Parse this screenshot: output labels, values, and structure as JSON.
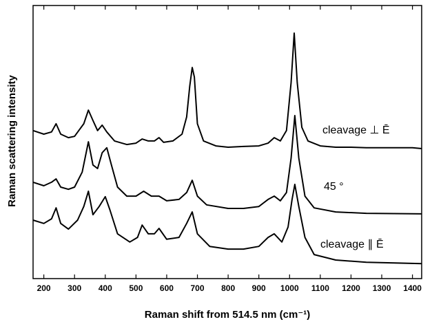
{
  "chart_data": {
    "type": "line",
    "xlabel": "Raman shift from 514.5 nm  (cm⁻¹)",
    "ylabel": "Raman scattering intensity",
    "xlim": [
      165,
      1430
    ],
    "ylim": [
      0,
      100
    ],
    "xticks": [
      200,
      300,
      400,
      500,
      600,
      700,
      800,
      900,
      1000,
      1100,
      1200,
      1300,
      1400
    ],
    "series": [
      {
        "name": "cleavage ⊥ Ē",
        "color": "#000000",
        "x": [
          165,
          200,
          225,
          240,
          255,
          280,
          300,
          330,
          345,
          360,
          375,
          390,
          405,
          430,
          470,
          500,
          520,
          540,
          560,
          575,
          590,
          620,
          650,
          665,
          675,
          683,
          690,
          700,
          720,
          760,
          800,
          850,
          900,
          930,
          950,
          970,
          990,
          1005,
          1015,
          1025,
          1040,
          1060,
          1100,
          1150,
          1200,
          1250,
          1300,
          1400,
          1430
        ],
        "values": [
          54.2,
          52.9,
          53.7,
          56.7,
          52.9,
          51.6,
          52.1,
          56.7,
          61.7,
          57.9,
          54.2,
          56.2,
          53.7,
          50.4,
          49.1,
          49.6,
          51.1,
          50.4,
          50.4,
          51.6,
          49.9,
          50.4,
          52.9,
          59.2,
          70.5,
          77.3,
          73.8,
          56.7,
          50.4,
          48.6,
          48.1,
          48.4,
          48.6,
          49.6,
          51.6,
          50.4,
          54.2,
          71.8,
          89.9,
          71.8,
          55.4,
          50.4,
          48.6,
          48.1,
          48.1,
          47.9,
          47.9,
          47.9,
          47.6
        ]
      },
      {
        "name": "45 °",
        "color": "#000000",
        "x": [
          165,
          200,
          225,
          240,
          255,
          280,
          300,
          325,
          345,
          360,
          375,
          390,
          405,
          420,
          440,
          470,
          500,
          525,
          550,
          575,
          600,
          640,
          665,
          683,
          700,
          730,
          800,
          850,
          900,
          930,
          950,
          970,
          990,
          1005,
          1017,
          1030,
          1050,
          1080,
          1150,
          1250,
          1430
        ],
        "values": [
          35.3,
          34.0,
          35.3,
          36.5,
          33.5,
          32.7,
          33.5,
          39.0,
          50.1,
          41.6,
          40.3,
          46.1,
          47.9,
          41.6,
          33.5,
          30.2,
          30.2,
          32.0,
          30.2,
          30.2,
          28.5,
          29.0,
          31.5,
          36.0,
          30.2,
          27.0,
          25.7,
          25.7,
          26.4,
          29.0,
          30.2,
          28.5,
          31.5,
          44.1,
          59.7,
          44.1,
          30.2,
          25.9,
          24.4,
          23.9,
          23.7
        ]
      },
      {
        "name": "cleavage ∥ Ē",
        "color": "#000000",
        "x": [
          165,
          200,
          225,
          240,
          255,
          280,
          310,
          330,
          345,
          360,
          380,
          400,
          415,
          440,
          480,
          505,
          520,
          540,
          560,
          575,
          600,
          640,
          665,
          683,
          700,
          740,
          800,
          850,
          900,
          930,
          950,
          975,
          995,
          1008,
          1017,
          1030,
          1050,
          1080,
          1150,
          1250,
          1430
        ],
        "values": [
          21.4,
          20.2,
          21.9,
          25.9,
          20.2,
          18.1,
          21.4,
          26.4,
          32.0,
          23.4,
          26.4,
          30.0,
          25.2,
          16.4,
          13.4,
          15.1,
          19.6,
          16.4,
          16.4,
          18.4,
          14.4,
          15.1,
          20.2,
          24.4,
          16.4,
          11.8,
          10.8,
          10.8,
          11.8,
          15.1,
          16.4,
          13.4,
          18.9,
          29.0,
          34.5,
          26.4,
          15.1,
          8.8,
          6.8,
          6.0,
          5.5
        ]
      }
    ]
  }
}
